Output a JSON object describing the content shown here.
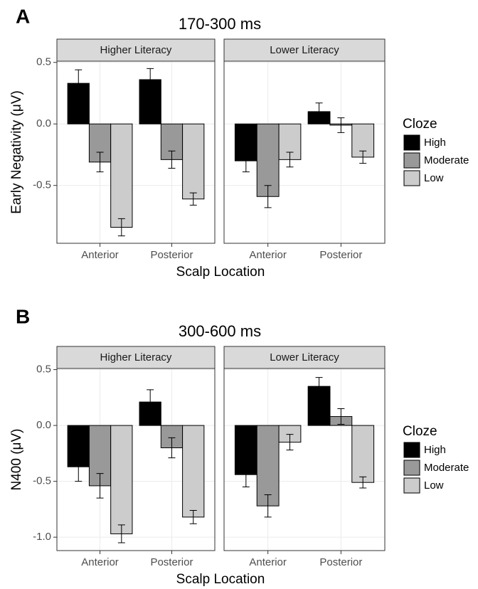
{
  "chart_data": [
    {
      "type": "bar",
      "panel_label": "A",
      "title": "170-300 ms",
      "y_label": "Early Negativity (μV)",
      "x_label": "Scalp Location",
      "facets": [
        "Higher Literacy",
        "Lower Literacy"
      ],
      "categories": [
        "Anterior",
        "Posterior"
      ],
      "legend_title": "Cloze",
      "series": [
        {
          "name": "High",
          "color": "#000000",
          "values": [
            [
              0.33,
              0.36
            ],
            [
              -0.3,
              0.1
            ]
          ],
          "errors": [
            [
              0.11,
              0.09
            ],
            [
              0.09,
              0.07
            ]
          ]
        },
        {
          "name": "Moderate",
          "color": "#999999",
          "values": [
            [
              -0.31,
              -0.29
            ],
            [
              -0.59,
              -0.01
            ]
          ],
          "errors": [
            [
              0.08,
              0.07
            ],
            [
              0.09,
              0.06
            ]
          ]
        },
        {
          "name": "Low",
          "color": "#cccccc",
          "values": [
            [
              -0.84,
              -0.61
            ],
            [
              -0.29,
              -0.27
            ]
          ],
          "errors": [
            [
              0.07,
              0.05
            ],
            [
              0.06,
              0.05
            ]
          ]
        }
      ],
      "ylim": [
        -0.97,
        0.51
      ],
      "yticks": [
        0.5,
        {
          "value": 0,
          "label": "0.0"
        },
        -0.5
      ],
      "grid": true
    },
    {
      "type": "bar",
      "panel_label": "B",
      "title": "300-600 ms",
      "y_label": "N400 (μV)",
      "x_label": "Scalp Location",
      "facets": [
        "Higher Literacy",
        "Lower Literacy"
      ],
      "categories": [
        "Anterior",
        "Posterior"
      ],
      "legend_title": "Cloze",
      "series": [
        {
          "name": "High",
          "color": "#000000",
          "values": [
            [
              -0.37,
              0.21
            ],
            [
              -0.44,
              0.35
            ]
          ],
          "errors": [
            [
              0.13,
              0.11
            ],
            [
              0.11,
              0.08
            ]
          ]
        },
        {
          "name": "Moderate",
          "color": "#999999",
          "values": [
            [
              -0.54,
              -0.2
            ],
            [
              -0.72,
              0.08
            ]
          ],
          "errors": [
            [
              0.11,
              0.09
            ],
            [
              0.1,
              0.07
            ]
          ]
        },
        {
          "name": "Low",
          "color": "#cccccc",
          "values": [
            [
              -0.97,
              -0.82
            ],
            [
              -0.15,
              -0.51
            ]
          ],
          "errors": [
            [
              0.08,
              0.06
            ],
            [
              0.07,
              0.05
            ]
          ]
        }
      ],
      "ylim": [
        -1.12,
        0.51
      ],
      "yticks": [
        0.5,
        {
          "value": 0,
          "label": "0.0"
        },
        -0.5,
        {
          "value": -1,
          "label": "-1.0"
        }
      ],
      "grid": true
    }
  ]
}
